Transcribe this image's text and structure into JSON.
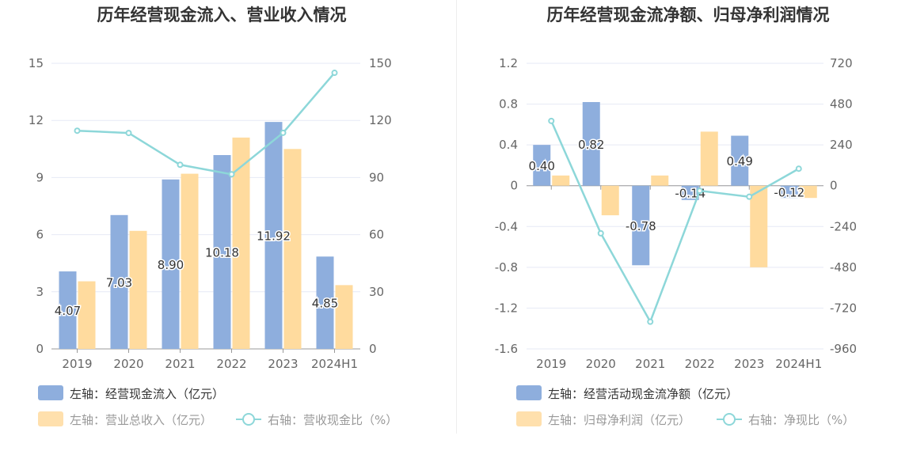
{
  "colors": {
    "blue": "#8eaedd",
    "orange": "#ffdb9e",
    "line": "#8dd7d9",
    "grid": "#e6e9f5",
    "legend_dim": "#999999",
    "legend_main": "#333333"
  },
  "chart_data": [
    {
      "type": "bar",
      "title": "历年经营现金流入、营业收入情况",
      "categories": [
        "2019",
        "2020",
        "2021",
        "2022",
        "2023",
        "2024H1"
      ],
      "y_left": {
        "ylim": [
          0,
          15
        ],
        "ticks": [
          "0",
          "3",
          "6",
          "9",
          "12",
          "15"
        ],
        "tick_values": [
          0,
          3,
          6,
          9,
          12,
          15
        ]
      },
      "y_right": {
        "ylim": [
          0,
          150
        ],
        "ticks": [
          "0",
          "30",
          "60",
          "90",
          "120",
          "150"
        ],
        "tick_values": [
          0,
          30,
          60,
          90,
          120,
          150
        ]
      },
      "series": [
        {
          "name": "左轴：经营现金流入（亿元）",
          "kind": "bar",
          "axis": "left",
          "color": "#8eaedd",
          "values": [
            4.07,
            7.03,
            8.9,
            10.18,
            11.92,
            4.85
          ],
          "labels": [
            "4.07",
            "7.03",
            "8.90",
            "10.18",
            "11.92",
            "4.85"
          ]
        },
        {
          "name": "左轴：营业总收入（亿元）",
          "kind": "bar",
          "axis": "left",
          "color": "#ffdb9e",
          "values": [
            3.55,
            6.2,
            9.2,
            11.1,
            10.5,
            3.35
          ]
        },
        {
          "name": "右轴：营收现金比（%）",
          "kind": "line",
          "axis": "right",
          "color": "#8dd7d9",
          "values": [
            114.6,
            113.4,
            96.7,
            91.7,
            113.5,
            145.0
          ]
        }
      ],
      "legend": [
        {
          "label": "左轴：经营现金流入（亿元）",
          "kind": "bar",
          "color": "#8eaedd",
          "text_color": "#333333"
        },
        {
          "label": "左轴：营业总收入（亿元）",
          "kind": "bar",
          "color": "#ffe0ad",
          "text_color": "#999999"
        },
        {
          "label": "右轴：营收现金比（%）",
          "kind": "line",
          "color": "#8dd7d9",
          "text_color": "#999999"
        }
      ]
    },
    {
      "type": "bar",
      "title": "历年经营现金流净额、归母净利润情况",
      "categories": [
        "2019",
        "2020",
        "2021",
        "2022",
        "2023",
        "2024H1"
      ],
      "y_left": {
        "ylim": [
          -1.6,
          1.2
        ],
        "ticks": [
          "-1.6",
          "-1.2",
          "-0.8",
          "-0.4",
          "0",
          "0.4",
          "0.8",
          "1.2"
        ],
        "tick_values": [
          -1.6,
          -1.2,
          -0.8,
          -0.4,
          0,
          0.4,
          0.8,
          1.2
        ]
      },
      "y_right": {
        "ylim": [
          -960,
          720
        ],
        "ticks": [
          "-960",
          "-720",
          "-480",
          "-240",
          "0",
          "240",
          "480",
          "720"
        ],
        "tick_values": [
          -960,
          -720,
          -480,
          -240,
          0,
          240,
          480,
          720
        ]
      },
      "series": [
        {
          "name": "左轴：经营活动现金流净额（亿元）",
          "kind": "bar",
          "axis": "left",
          "color": "#8eaedd",
          "values": [
            0.4,
            0.82,
            -0.78,
            -0.14,
            0.49,
            -0.12
          ],
          "labels": [
            "0.40",
            "0.82",
            "-0.78",
            "-0.14",
            "0.49",
            "-0.12"
          ]
        },
        {
          "name": "左轴：归母净利润（亿元）",
          "kind": "bar",
          "axis": "left",
          "color": "#ffdb9e",
          "values": [
            0.1,
            -0.29,
            0.1,
            0.53,
            -0.8,
            -0.12
          ]
        },
        {
          "name": "右轴：净现比（%）",
          "kind": "line",
          "axis": "right",
          "color": "#8dd7d9",
          "values": [
            381,
            -280,
            -800,
            -30,
            -65,
            100
          ]
        }
      ],
      "legend": [
        {
          "label": "左轴：经营活动现金流净额（亿元）",
          "kind": "bar",
          "color": "#8eaedd",
          "text_color": "#333333"
        },
        {
          "label": "左轴：归母净利润（亿元）",
          "kind": "bar",
          "color": "#ffe0ad",
          "text_color": "#999999"
        },
        {
          "label": "右轴：净现比（%）",
          "kind": "line",
          "color": "#8dd7d9",
          "text_color": "#999999"
        }
      ]
    }
  ]
}
